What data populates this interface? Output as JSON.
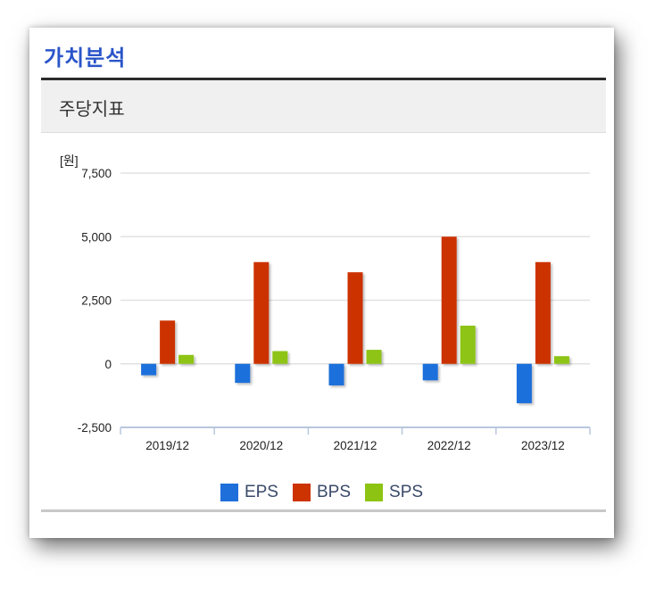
{
  "section_title": "가치분석",
  "subheader": "주당지표",
  "chart_data": {
    "type": "bar",
    "unit_label": "[원]",
    "categories": [
      "2019/12",
      "2020/12",
      "2021/12",
      "2022/12",
      "2023/12"
    ],
    "series": [
      {
        "name": "EPS",
        "color": "#1f6fdb",
        "values": [
          -450,
          -750,
          -850,
          -650,
          -1550
        ]
      },
      {
        "name": "BPS",
        "color": "#cc3300",
        "values": [
          1700,
          4000,
          3600,
          5000,
          4000
        ]
      },
      {
        "name": "SPS",
        "color": "#8dc414",
        "values": [
          350,
          500,
          550,
          1500,
          300
        ]
      }
    ],
    "yticks": [
      "7,500",
      "5,000",
      "2,500",
      "0",
      "-2,500"
    ],
    "ytick_values": [
      7500,
      5000,
      2500,
      0,
      -2500
    ],
    "ylim": [
      -2500,
      7500
    ],
    "grid": true,
    "legend_position": "bottom"
  }
}
